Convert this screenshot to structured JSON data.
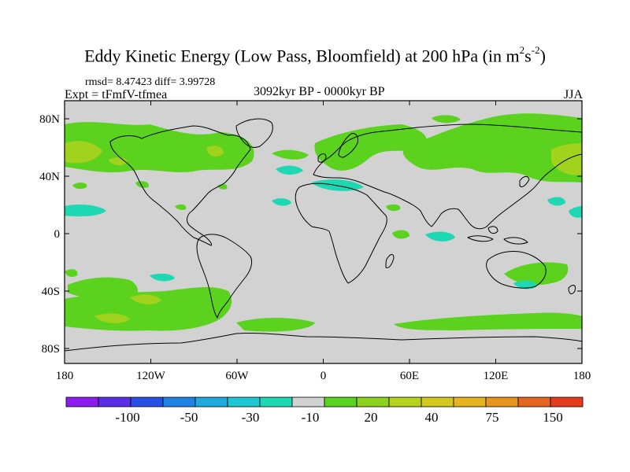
{
  "title": {
    "prefix": "Eddy Kinetic Energy (Low Pass, Bloomfield) at 200 hPa (in m",
    "exp1": "2",
    "mid": "s",
    "exp2": "-2",
    "suffix": ")"
  },
  "stats": "rmsd= 8.47423  diff= 3.99728",
  "expt": "Expt = tFmfV-tfmea",
  "period": "3092kyr BP - 0000kyr BP",
  "season": "JJA",
  "y_ticks": [
    "80N",
    "40N",
    "0",
    "40S",
    "80S"
  ],
  "x_ticks": [
    "180",
    "120W",
    "60W",
    "0",
    "60E",
    "120E",
    "180"
  ],
  "colorbar": {
    "labels": [
      "-100",
      "-50",
      "-30",
      "-10",
      "20",
      "40",
      "75",
      "150"
    ],
    "colors": [
      "#8c1cf0",
      "#5a2ee6",
      "#2850e6",
      "#1e82e6",
      "#1eaadc",
      "#1ec8d2",
      "#1ed8b4",
      "#d2d2d2",
      "#5ad21e",
      "#8cd21e",
      "#b4d21e",
      "#d2c81e",
      "#e6b41e",
      "#e6961e",
      "#e6641e",
      "#e63c1e"
    ]
  },
  "map": {
    "background_color": "#d2d2d2",
    "positive_low_color": "#5ad21e",
    "positive_mid_color": "#a0d21e",
    "negative_low_color": "#1ed8b4"
  }
}
